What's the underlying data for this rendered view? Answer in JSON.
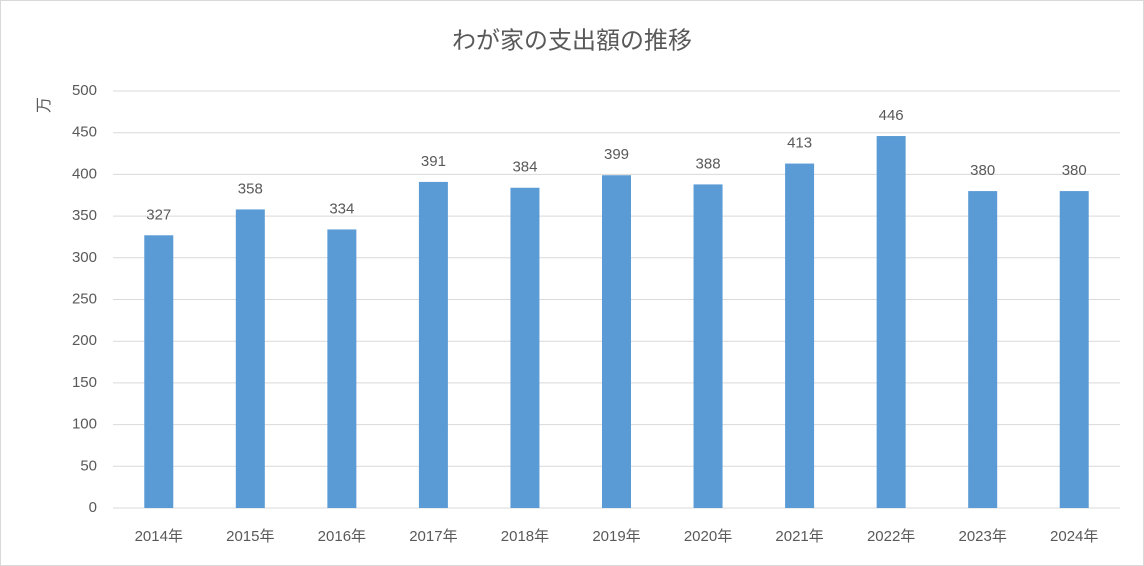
{
  "chart_data": {
    "type": "bar",
    "title": "わが家の支出額の推移",
    "y_label": "万",
    "categories": [
      "2014年",
      "2015年",
      "2016年",
      "2017年",
      "2018年",
      "2019年",
      "2020年",
      "2021年",
      "2022年",
      "2023年",
      "2024年"
    ],
    "values": [
      327,
      358,
      334,
      391,
      384,
      399,
      388,
      413,
      446,
      380,
      380
    ],
    "color": "#5b9bd5",
    "ylim": [
      0,
      500
    ],
    "yticks": [
      0,
      50,
      100,
      150,
      200,
      250,
      300,
      350,
      400,
      450,
      500
    ],
    "grid": true,
    "data_labels": true
  }
}
